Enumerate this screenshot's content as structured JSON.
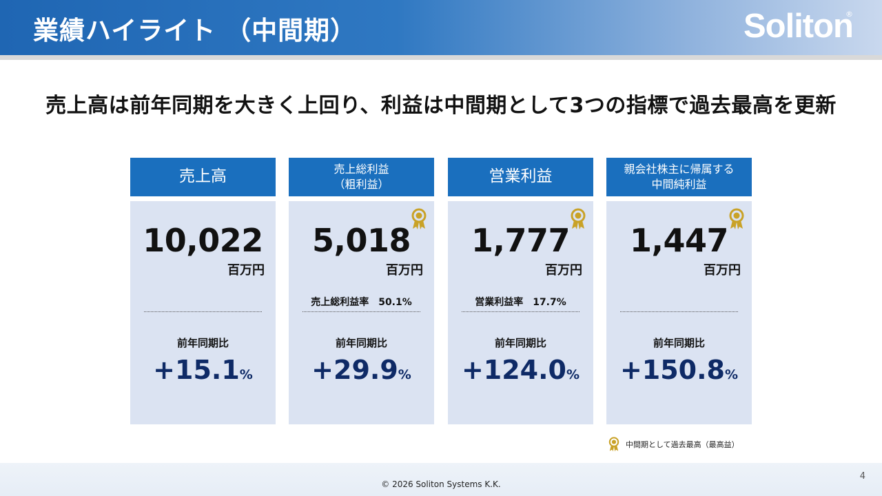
{
  "header": {
    "title": "業績ハイライト （中間期）",
    "logo": "Soliton",
    "logo_mark": "®"
  },
  "headline": "売上高は前年同期を大きく上回り、利益は中間期として3つの指標で過去最高を更新",
  "cards": [
    {
      "title": "売上高",
      "value": "10,022",
      "unit": "百万円",
      "ratio": "",
      "yoy_label": "前年同期比",
      "yoy_value": "+15.1",
      "yoy_unit": "%",
      "record": false
    },
    {
      "title_line1": "売上総利益",
      "title_line2": "（粗利益）",
      "value": "5,018",
      "unit": "百万円",
      "ratio": "売上総利益率　50.1%",
      "yoy_label": "前年同期比",
      "yoy_value": "+29.9",
      "yoy_unit": "%",
      "record": true
    },
    {
      "title": "営業利益",
      "value": "1,777",
      "unit": "百万円",
      "ratio": "営業利益率　17.7%",
      "yoy_label": "前年同期比",
      "yoy_value": "+124.0",
      "yoy_unit": "%",
      "record": true
    },
    {
      "title_line1": "親会社株主に帰属する",
      "title_line2": "中間純利益",
      "value": "1,447",
      "unit": "百万円",
      "ratio": "",
      "yoy_label": "前年同期比",
      "yoy_value": "+150.8",
      "yoy_unit": "%",
      "record": true
    }
  ],
  "legend": "中間期として過去最高（最高益）",
  "footer": {
    "copyright": "© 2026 Soliton Systems K.K.",
    "page": "4"
  },
  "colors": {
    "header_blue": "#1f66b3",
    "card_head": "#1a6fbe",
    "card_body": "#dbe3f2",
    "yoy_navy": "#0e2a66",
    "medal_gold": "#c9a227"
  },
  "icons": {
    "record": "award-medal-icon"
  }
}
